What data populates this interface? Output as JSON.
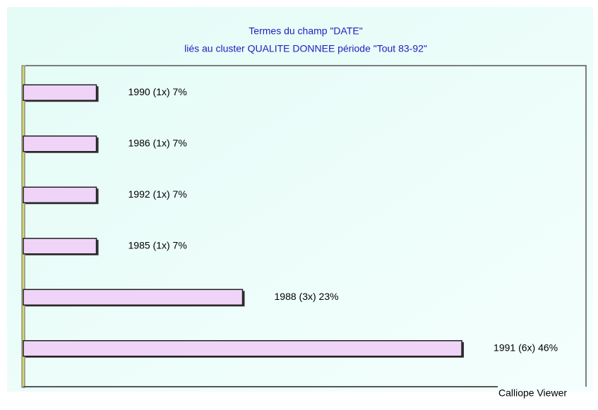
{
  "chart_data": {
    "type": "barh",
    "title": "Termes du champ \"DATE\"",
    "subtitle": "liés au cluster QUALITE DONNEE période \"Tout 83-92\"",
    "categories": [
      "1990 (1x) 7%",
      "1986 (1x) 7%",
      "1992 (1x) 7%",
      "1985 (1x) 7%",
      "1988 (3x) 23%",
      "1991 (6x) 46%"
    ],
    "values": [
      1,
      1,
      1,
      1,
      3,
      6
    ],
    "color": "#f0d4f8",
    "xlim": [
      0,
      7.7
    ],
    "footer": "Calliope Viewer"
  }
}
